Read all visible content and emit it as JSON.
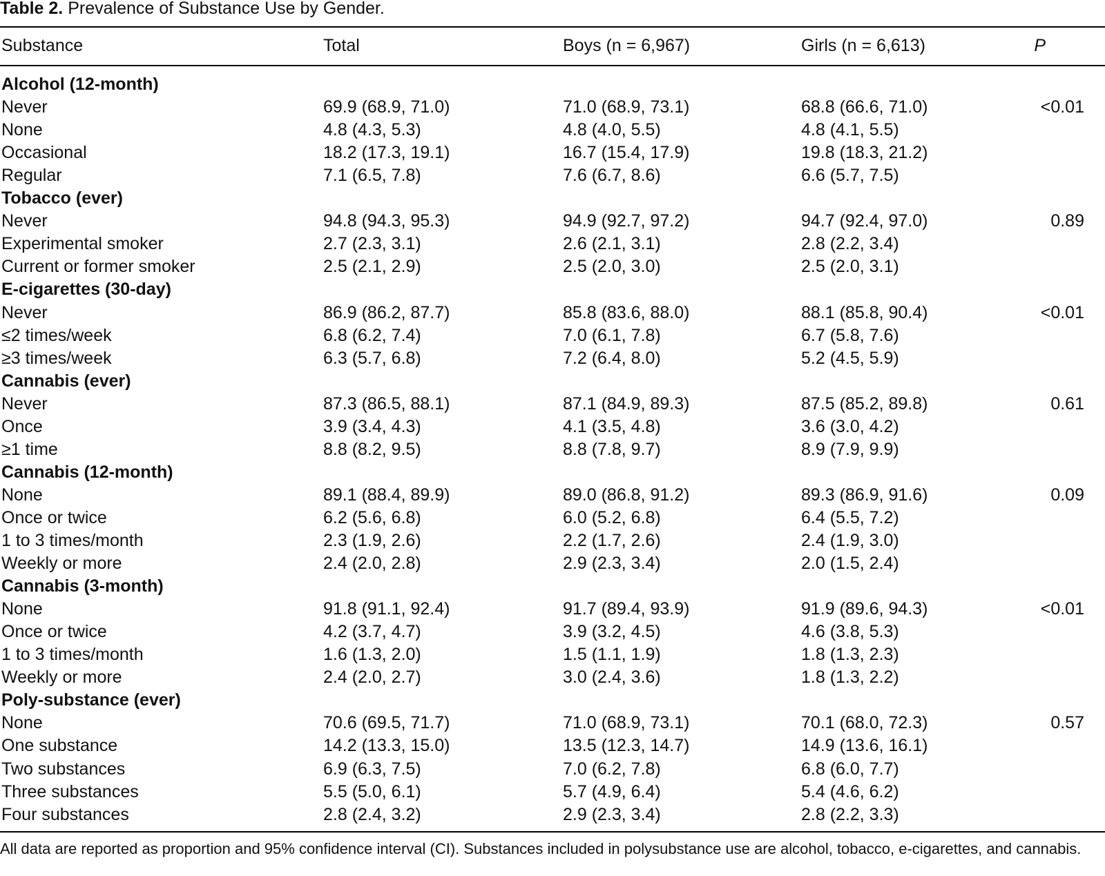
{
  "caption": {
    "label": "Table 2.",
    "title": "Prevalence of Substance Use by Gender."
  },
  "headers": {
    "substance": "Substance",
    "total": "Total",
    "boys": "Boys (n = 6,967)",
    "girls": "Girls (n = 6,613)",
    "p": "P"
  },
  "rows": [
    {
      "type": "section",
      "substance": "Alcohol (12-month)"
    },
    {
      "type": "data",
      "substance": "Never",
      "total": "69.9 (68.9, 71.0)",
      "boys": "71.0 (68.9, 73.1)",
      "girls": "68.8 (66.6, 71.0)",
      "p": "<0.01"
    },
    {
      "type": "data",
      "substance": "None",
      "total": "4.8 (4.3, 5.3)",
      "boys": "4.8 (4.0, 5.5)",
      "girls": "4.8 (4.1, 5.5)",
      "p": ""
    },
    {
      "type": "data",
      "substance": "Occasional",
      "total": "18.2 (17.3, 19.1)",
      "boys": "16.7 (15.4, 17.9)",
      "girls": "19.8 (18.3, 21.2)",
      "p": ""
    },
    {
      "type": "data",
      "substance": "Regular",
      "total": "7.1 (6.5, 7.8)",
      "boys": "7.6 (6.7, 8.6)",
      "girls": "6.6 (5.7, 7.5)",
      "p": ""
    },
    {
      "type": "section",
      "substance": "Tobacco (ever)"
    },
    {
      "type": "data",
      "substance": "Never",
      "total": "94.8 (94.3, 95.3)",
      "boys": "94.9 (92.7, 97.2)",
      "girls": "94.7 (92.4, 97.0)",
      "p": "0.89"
    },
    {
      "type": "data",
      "substance": "Experimental smoker",
      "total": "2.7 (2.3, 3.1)",
      "boys": "2.6 (2.1, 3.1)",
      "girls": "2.8 (2.2, 3.4)",
      "p": ""
    },
    {
      "type": "data",
      "substance": "Current or former smoker",
      "total": "2.5 (2.1, 2.9)",
      "boys": "2.5 (2.0, 3.0)",
      "girls": "2.5 (2.0, 3.1)",
      "p": ""
    },
    {
      "type": "section",
      "substance": "E-cigarettes (30-day)"
    },
    {
      "type": "data",
      "substance": "Never",
      "total": "86.9 (86.2, 87.7)",
      "boys": "85.8 (83.6, 88.0)",
      "girls": "88.1 (85.8, 90.4)",
      "p": "<0.01"
    },
    {
      "type": "data",
      "substance": "≤2 times/week",
      "total": "6.8 (6.2, 7.4)",
      "boys": "7.0 (6.1, 7.8)",
      "girls": "6.7 (5.8, 7.6)",
      "p": ""
    },
    {
      "type": "data",
      "substance": "≥3 times/week",
      "total": "6.3 (5.7, 6.8)",
      "boys": "7.2 (6.4, 8.0)",
      "girls": "5.2 (4.5, 5.9)",
      "p": ""
    },
    {
      "type": "section",
      "substance": "Cannabis (ever)"
    },
    {
      "type": "data",
      "substance": "Never",
      "total": "87.3 (86.5, 88.1)",
      "boys": "87.1 (84.9, 89.3)",
      "girls": "87.5 (85.2, 89.8)",
      "p": "0.61"
    },
    {
      "type": "data",
      "substance": "Once",
      "total": "3.9 (3.4, 4.3)",
      "boys": "4.1 (3.5, 4.8)",
      "girls": "3.6 (3.0, 4.2)",
      "p": ""
    },
    {
      "type": "data",
      "substance": "≥1 time",
      "total": "8.8 (8.2, 9.5)",
      "boys": "8.8 (7.8, 9.7)",
      "girls": "8.9 (7.9, 9.9)",
      "p": ""
    },
    {
      "type": "section",
      "substance": "Cannabis (12-month)"
    },
    {
      "type": "data",
      "substance": "None",
      "total": "89.1 (88.4, 89.9)",
      "boys": "89.0 (86.8, 91.2)",
      "girls": "89.3 (86.9, 91.6)",
      "p": "0.09"
    },
    {
      "type": "data",
      "substance": "Once or twice",
      "total": "6.2 (5.6, 6.8)",
      "boys": "6.0 (5.2, 6.8)",
      "girls": "6.4 (5.5, 7.2)",
      "p": ""
    },
    {
      "type": "data",
      "substance": "1 to 3 times/month",
      "total": "2.3 (1.9, 2.6)",
      "boys": "2.2 (1.7, 2.6)",
      "girls": "2.4 (1.9, 3.0)",
      "p": ""
    },
    {
      "type": "data",
      "substance": "Weekly or more",
      "total": "2.4 (2.0, 2.8)",
      "boys": "2.9 (2.3, 3.4)",
      "girls": "2.0 (1.5, 2.4)",
      "p": ""
    },
    {
      "type": "section",
      "substance": "Cannabis (3-month)"
    },
    {
      "type": "data",
      "substance": "None",
      "total": "91.8 (91.1, 92.4)",
      "boys": "91.7 (89.4, 93.9)",
      "girls": "91.9 (89.6, 94.3)",
      "p": "<0.01"
    },
    {
      "type": "data",
      "substance": "Once or twice",
      "total": "4.2 (3.7, 4.7)",
      "boys": "3.9 (3.2, 4.5)",
      "girls": "4.6 (3.8, 5.3)",
      "p": ""
    },
    {
      "type": "data",
      "substance": "1 to 3 times/month",
      "total": "1.6 (1.3, 2.0)",
      "boys": "1.5 (1.1, 1.9)",
      "girls": "1.8 (1.3, 2.3)",
      "p": ""
    },
    {
      "type": "data",
      "substance": "Weekly or more",
      "total": "2.4 (2.0, 2.7)",
      "boys": "3.0 (2.4, 3.6)",
      "girls": "1.8 (1.3, 2.2)",
      "p": ""
    },
    {
      "type": "section",
      "substance": "Poly-substance (ever)"
    },
    {
      "type": "data",
      "substance": "None",
      "total": "70.6 (69.5, 71.7)",
      "boys": "71.0 (68.9, 73.1)",
      "girls": "70.1 (68.0, 72.3)",
      "p": "0.57"
    },
    {
      "type": "data",
      "substance": "One substance",
      "total": "14.2 (13.3, 15.0)",
      "boys": "13.5 (12.3, 14.7)",
      "girls": "14.9 (13.6, 16.1)",
      "p": ""
    },
    {
      "type": "data",
      "substance": "Two substances",
      "total": "6.9 (6.3, 7.5)",
      "boys": "7.0 (6.2, 7.8)",
      "girls": "6.8 (6.0, 7.7)",
      "p": ""
    },
    {
      "type": "data",
      "substance": "Three substances",
      "total": "5.5 (5.0, 6.1)",
      "boys": "5.7 (4.9, 6.4)",
      "girls": "5.4 (4.6, 6.2)",
      "p": ""
    },
    {
      "type": "data",
      "substance": "Four substances",
      "total": "2.8 (2.4, 3.2)",
      "boys": "2.9 (2.3, 3.4)",
      "girls": "2.8 (2.2, 3.3)",
      "p": ""
    }
  ],
  "footnote": "All data are reported as proportion and 95% confidence interval (CI). Substances included in polysubstance use are alcohol, tobacco, e-cigarettes, and cannabis."
}
